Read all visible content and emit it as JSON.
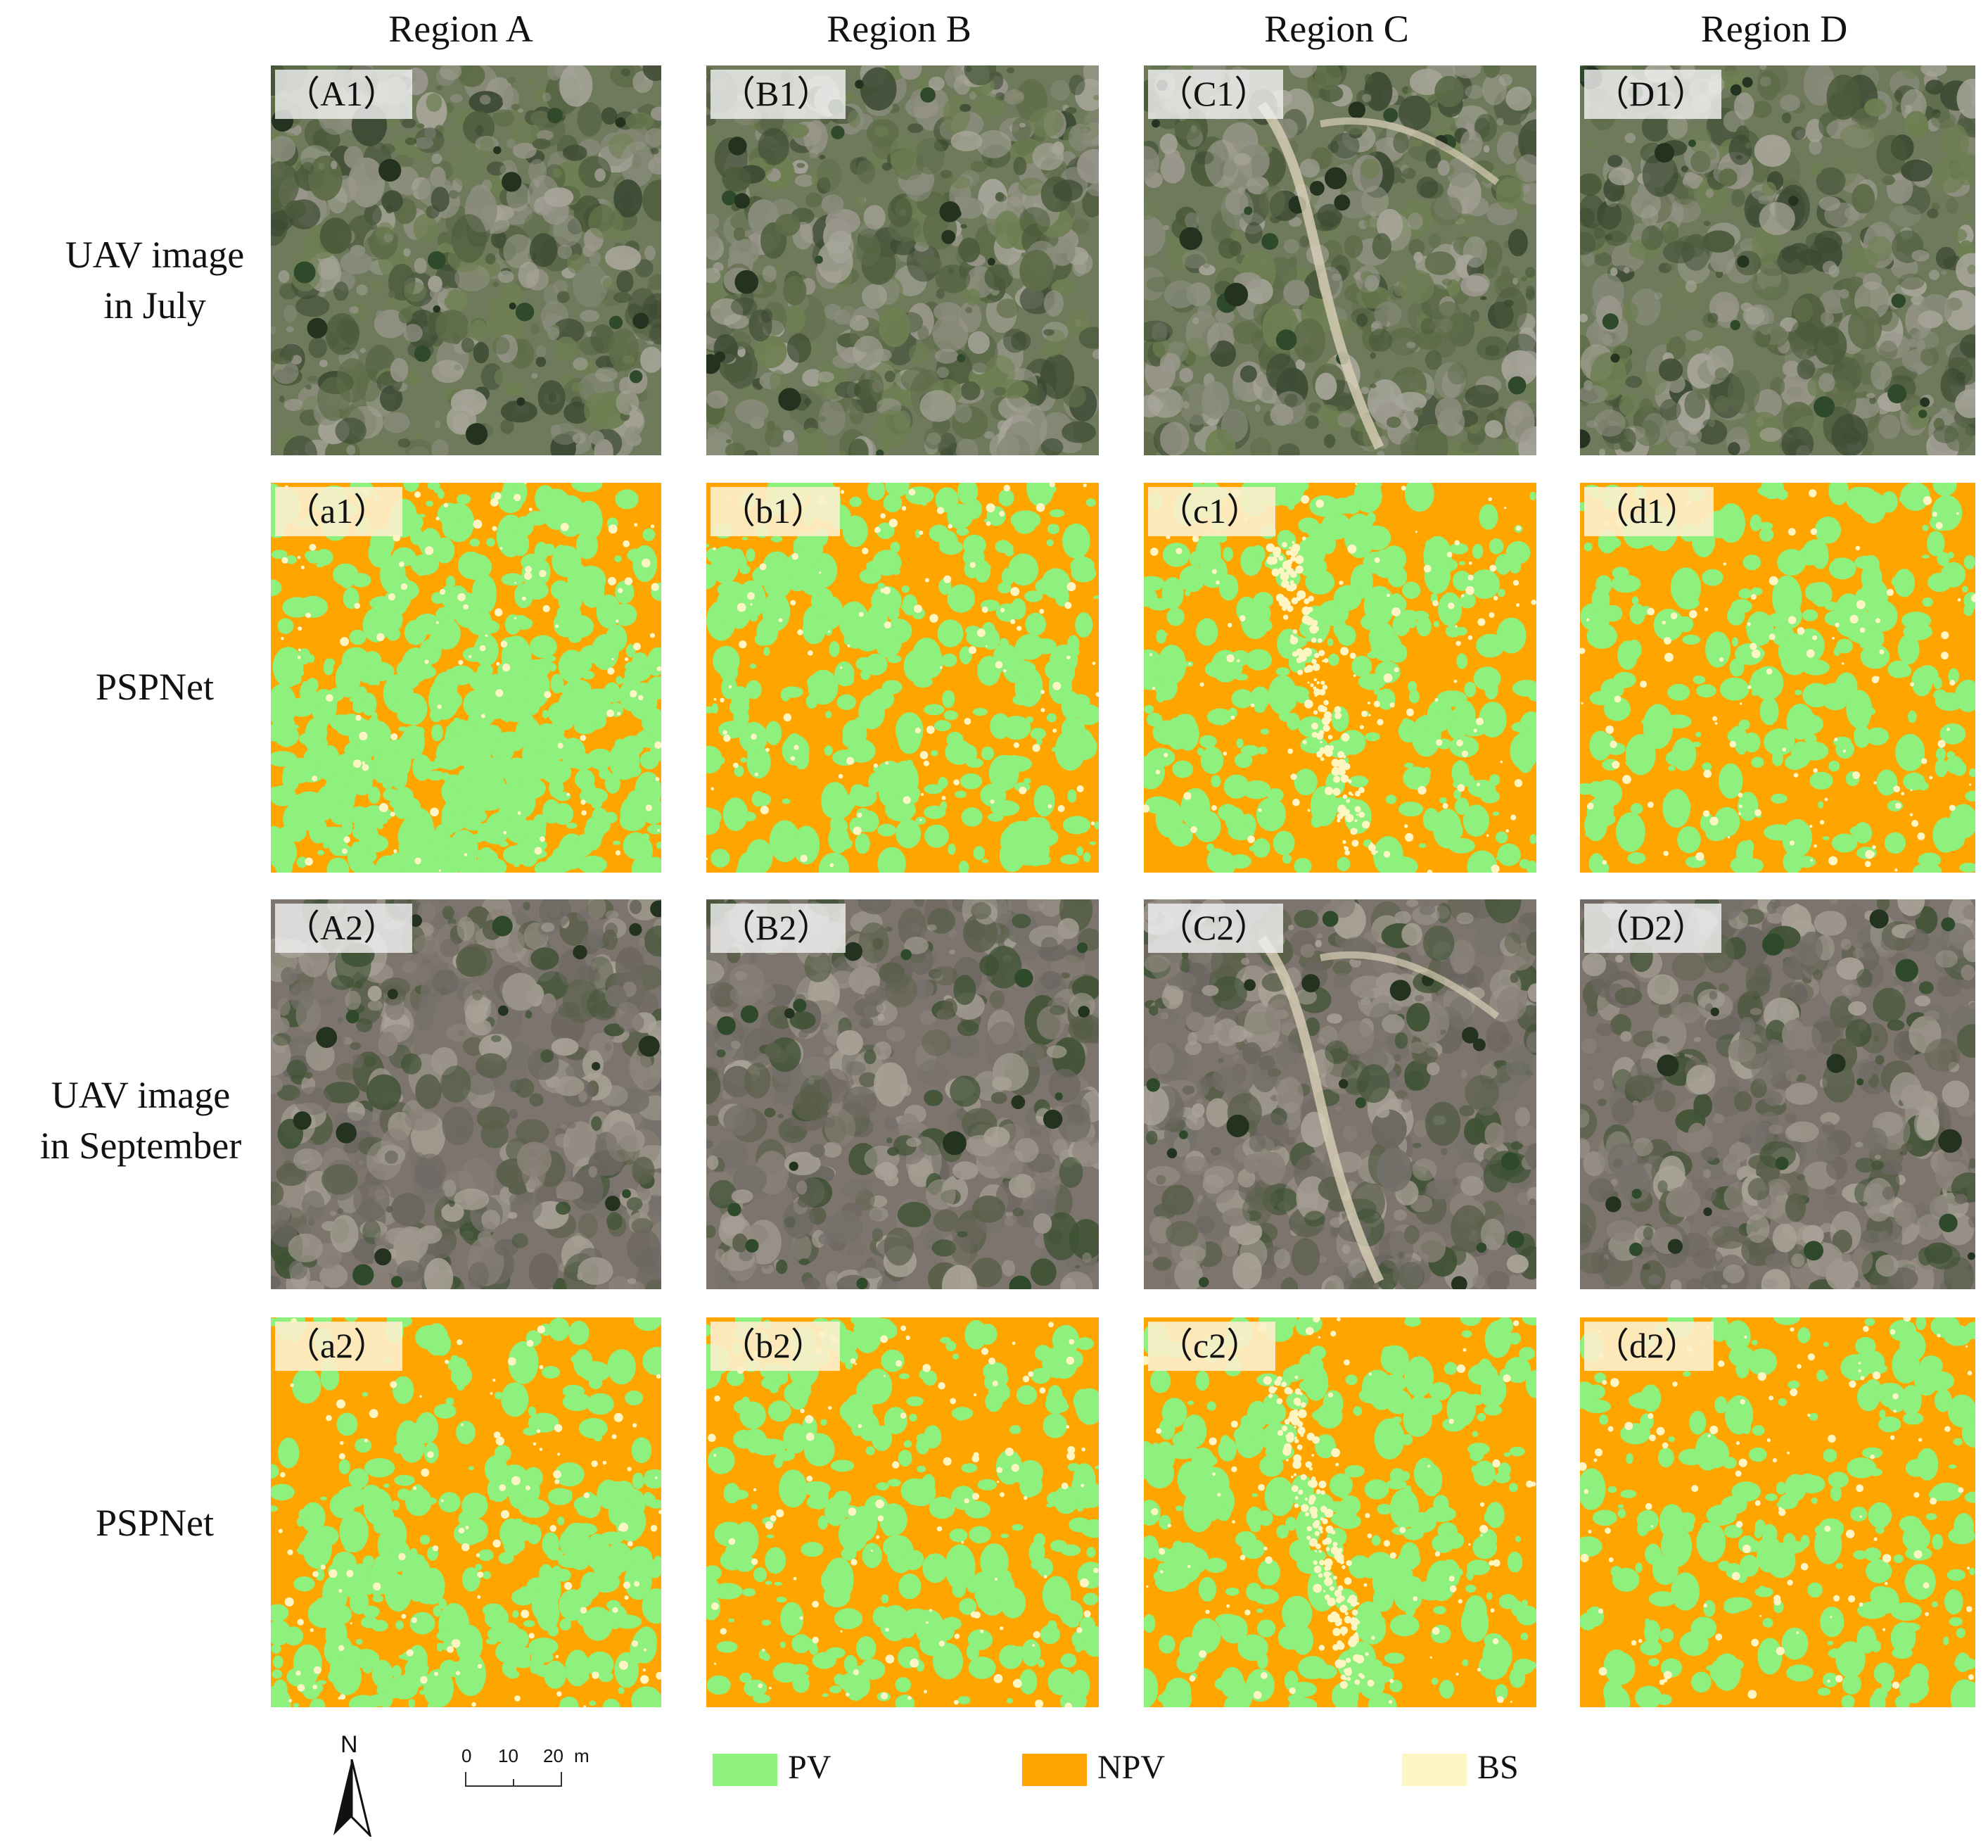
{
  "columns": [
    "Region A",
    "Region B",
    "Region C",
    "Region D"
  ],
  "rows": [
    {
      "label_lines": [
        "UAV image",
        "in July"
      ],
      "kind": "uav",
      "month": "july",
      "tags": [
        "（A1）",
        "（B1）",
        "（C1）",
        "（D1）"
      ]
    },
    {
      "label_lines": [
        "PSPNet"
      ],
      "kind": "classification",
      "tags": [
        "（a1）",
        "（b1）",
        "（c1）",
        "（d1）"
      ]
    },
    {
      "label_lines": [
        "UAV image",
        "in September"
      ],
      "kind": "uav",
      "month": "september",
      "tags": [
        "（A2）",
        "（B2）",
        "（C2）",
        "（D2）"
      ]
    },
    {
      "label_lines": [
        "PSPNet"
      ],
      "kind": "classification",
      "tags": [
        "（a2）",
        "（b2）",
        "（c2）",
        "（d2）"
      ]
    }
  ],
  "legend": [
    {
      "label": "PV",
      "color": "#8ef07d"
    },
    {
      "label": "NPV",
      "color": "#ffa500"
    },
    {
      "label": "BS",
      "color": "#fdf6c3"
    }
  ],
  "north_arrow": {
    "label": "N"
  },
  "scale_bar": {
    "ticks": [
      "0",
      "10",
      "20"
    ],
    "unit": "m"
  },
  "colors": {
    "uav_july_base": "#6f7a5c",
    "uav_september_base": "#7d756d",
    "pv": "#8ef07d",
    "npv": "#ffa500",
    "bs": "#fdf6c3"
  }
}
